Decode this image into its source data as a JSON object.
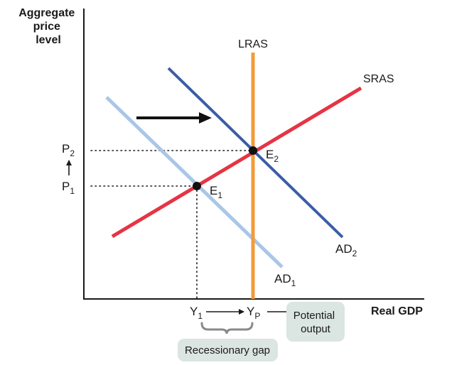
{
  "axes": {
    "y_label_lines": [
      "Aggregate",
      "price",
      "level"
    ],
    "x_label": "Real GDP"
  },
  "curves": {
    "lras": {
      "label": "LRAS",
      "color": "#f29b3c"
    },
    "sras": {
      "label": "SRAS",
      "color": "#e63444"
    },
    "ad1": {
      "label": "AD",
      "sub": "1",
      "color": "#a9c6e8"
    },
    "ad2": {
      "label": "AD",
      "sub": "2",
      "color": "#3a5da6"
    }
  },
  "price_levels": {
    "p1": {
      "label": "P",
      "sub": "1"
    },
    "p2": {
      "label": "P",
      "sub": "2"
    }
  },
  "quantities": {
    "y1": {
      "label": "Y",
      "sub": "1"
    },
    "yp": {
      "label": "Y",
      "sub": "P"
    }
  },
  "equilibria": {
    "e1": {
      "label": "E",
      "sub": "1"
    },
    "e2": {
      "label": "E",
      "sub": "2"
    }
  },
  "annotations": {
    "potential_output_lines": [
      "Potential",
      "output"
    ],
    "recessionary_gap": "Recessionary gap",
    "annotation_box_color": "#dbe5e1"
  }
}
